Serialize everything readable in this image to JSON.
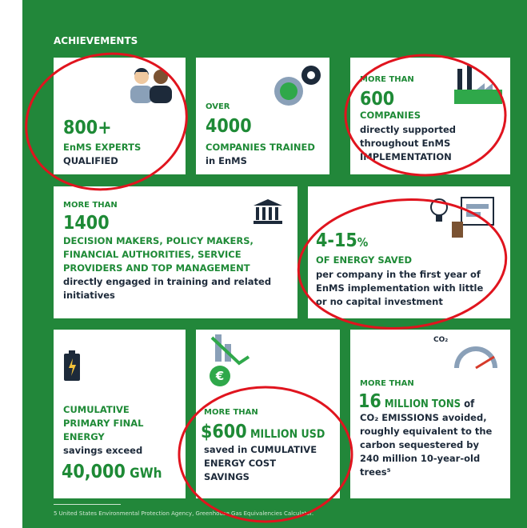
{
  "title": "ACHIEVEMENTS",
  "cards": [
    {
      "number": "800+",
      "lines": [
        "EnMS EXPERTS",
        "QUALIFIED"
      ]
    },
    {
      "prefix": "OVER",
      "number": "4000",
      "lines": [
        "COMPANIES TRAINED",
        "in EnMS"
      ]
    },
    {
      "prefix": "MORE THAN",
      "number": "600",
      "lines": [
        "COMPANIES",
        "directly supported",
        "throughout EnMS",
        "IMPLEMENTATION"
      ]
    },
    {
      "prefix": "MORE THAN",
      "number": "1400",
      "lines": [
        "DECISION MAKERS, POLICY MAKERS,",
        "FINANCIAL AUTHORITIES, SERVICE",
        "PROVIDERS AND TOP MANAGEMENT",
        "directly engaged in training and related",
        "initiatives"
      ]
    },
    {
      "number": "4-15",
      "unit": "%",
      "lines": [
        "OF ENERGY SAVED",
        "per company in the first year of",
        "EnMS implementation with little",
        "or no capital investment"
      ]
    },
    {
      "lines": [
        "CUMULATIVE",
        "PRIMARY FINAL",
        "ENERGY",
        "savings exceed"
      ],
      "number": "40,000",
      "unit": " GWh"
    },
    {
      "prefix": "MORE THAN",
      "number": "$600",
      "unit": " MILLION USD",
      "lines": [
        "saved in CUMULATIVE",
        "ENERGY COST",
        "SAVINGS"
      ]
    },
    {
      "icon_label": "CO₂",
      "prefix": "MORE THAN",
      "number": "16",
      "unit": " MILLION TONS",
      "unit_suffix": " of",
      "lines": [
        "CO₂ EMISSIONS avoided,",
        "roughly equivalent to the",
        "carbon sequestered by",
        "240 million 10-year-old",
        "trees⁵"
      ]
    }
  ],
  "footnote": "5 United States Environmental Protection Agency, Greenhouse Gas Equivalencies Calculator."
}
